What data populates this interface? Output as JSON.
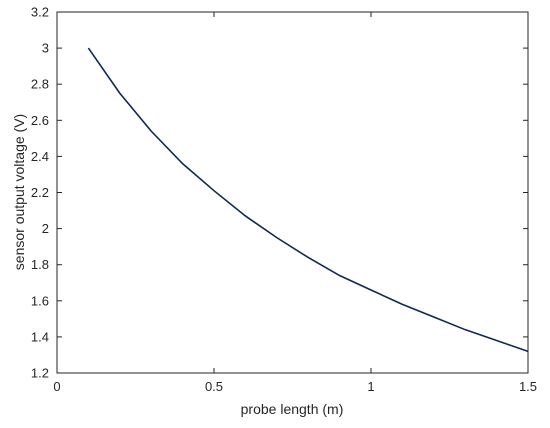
{
  "chart_data": {
    "type": "line",
    "title": "",
    "xlabel": "probe length  (m)",
    "ylabel": "sensor output voltage (V)",
    "xlim": [
      0,
      1.5
    ],
    "ylim": [
      1.2,
      3.2
    ],
    "xticks": [
      0,
      0.5,
      1,
      1.5
    ],
    "xtick_labels": [
      "0",
      "0.5",
      "1",
      "1.5"
    ],
    "yticks": [
      1.2,
      1.4,
      1.6,
      1.8,
      2,
      2.2,
      2.4,
      2.6,
      2.8,
      3,
      3.2
    ],
    "ytick_labels": [
      "1.2",
      "1.4",
      "1.6",
      "1.8",
      "2",
      "2.2",
      "2.4",
      "2.6",
      "2.8",
      "3",
      "3.2"
    ],
    "grid": false,
    "legend": "none",
    "line_color": "#0b2a55",
    "series": [
      {
        "x": [
          0.1,
          0.2,
          0.3,
          0.4,
          0.5,
          0.6,
          0.7,
          0.8,
          0.9,
          1.0,
          1.1,
          1.2,
          1.3,
          1.4,
          1.5
        ],
        "values": [
          3.0,
          2.75,
          2.54,
          2.36,
          2.21,
          2.07,
          1.95,
          1.84,
          1.74,
          1.66,
          1.58,
          1.51,
          1.44,
          1.38,
          1.32
        ]
      }
    ]
  }
}
